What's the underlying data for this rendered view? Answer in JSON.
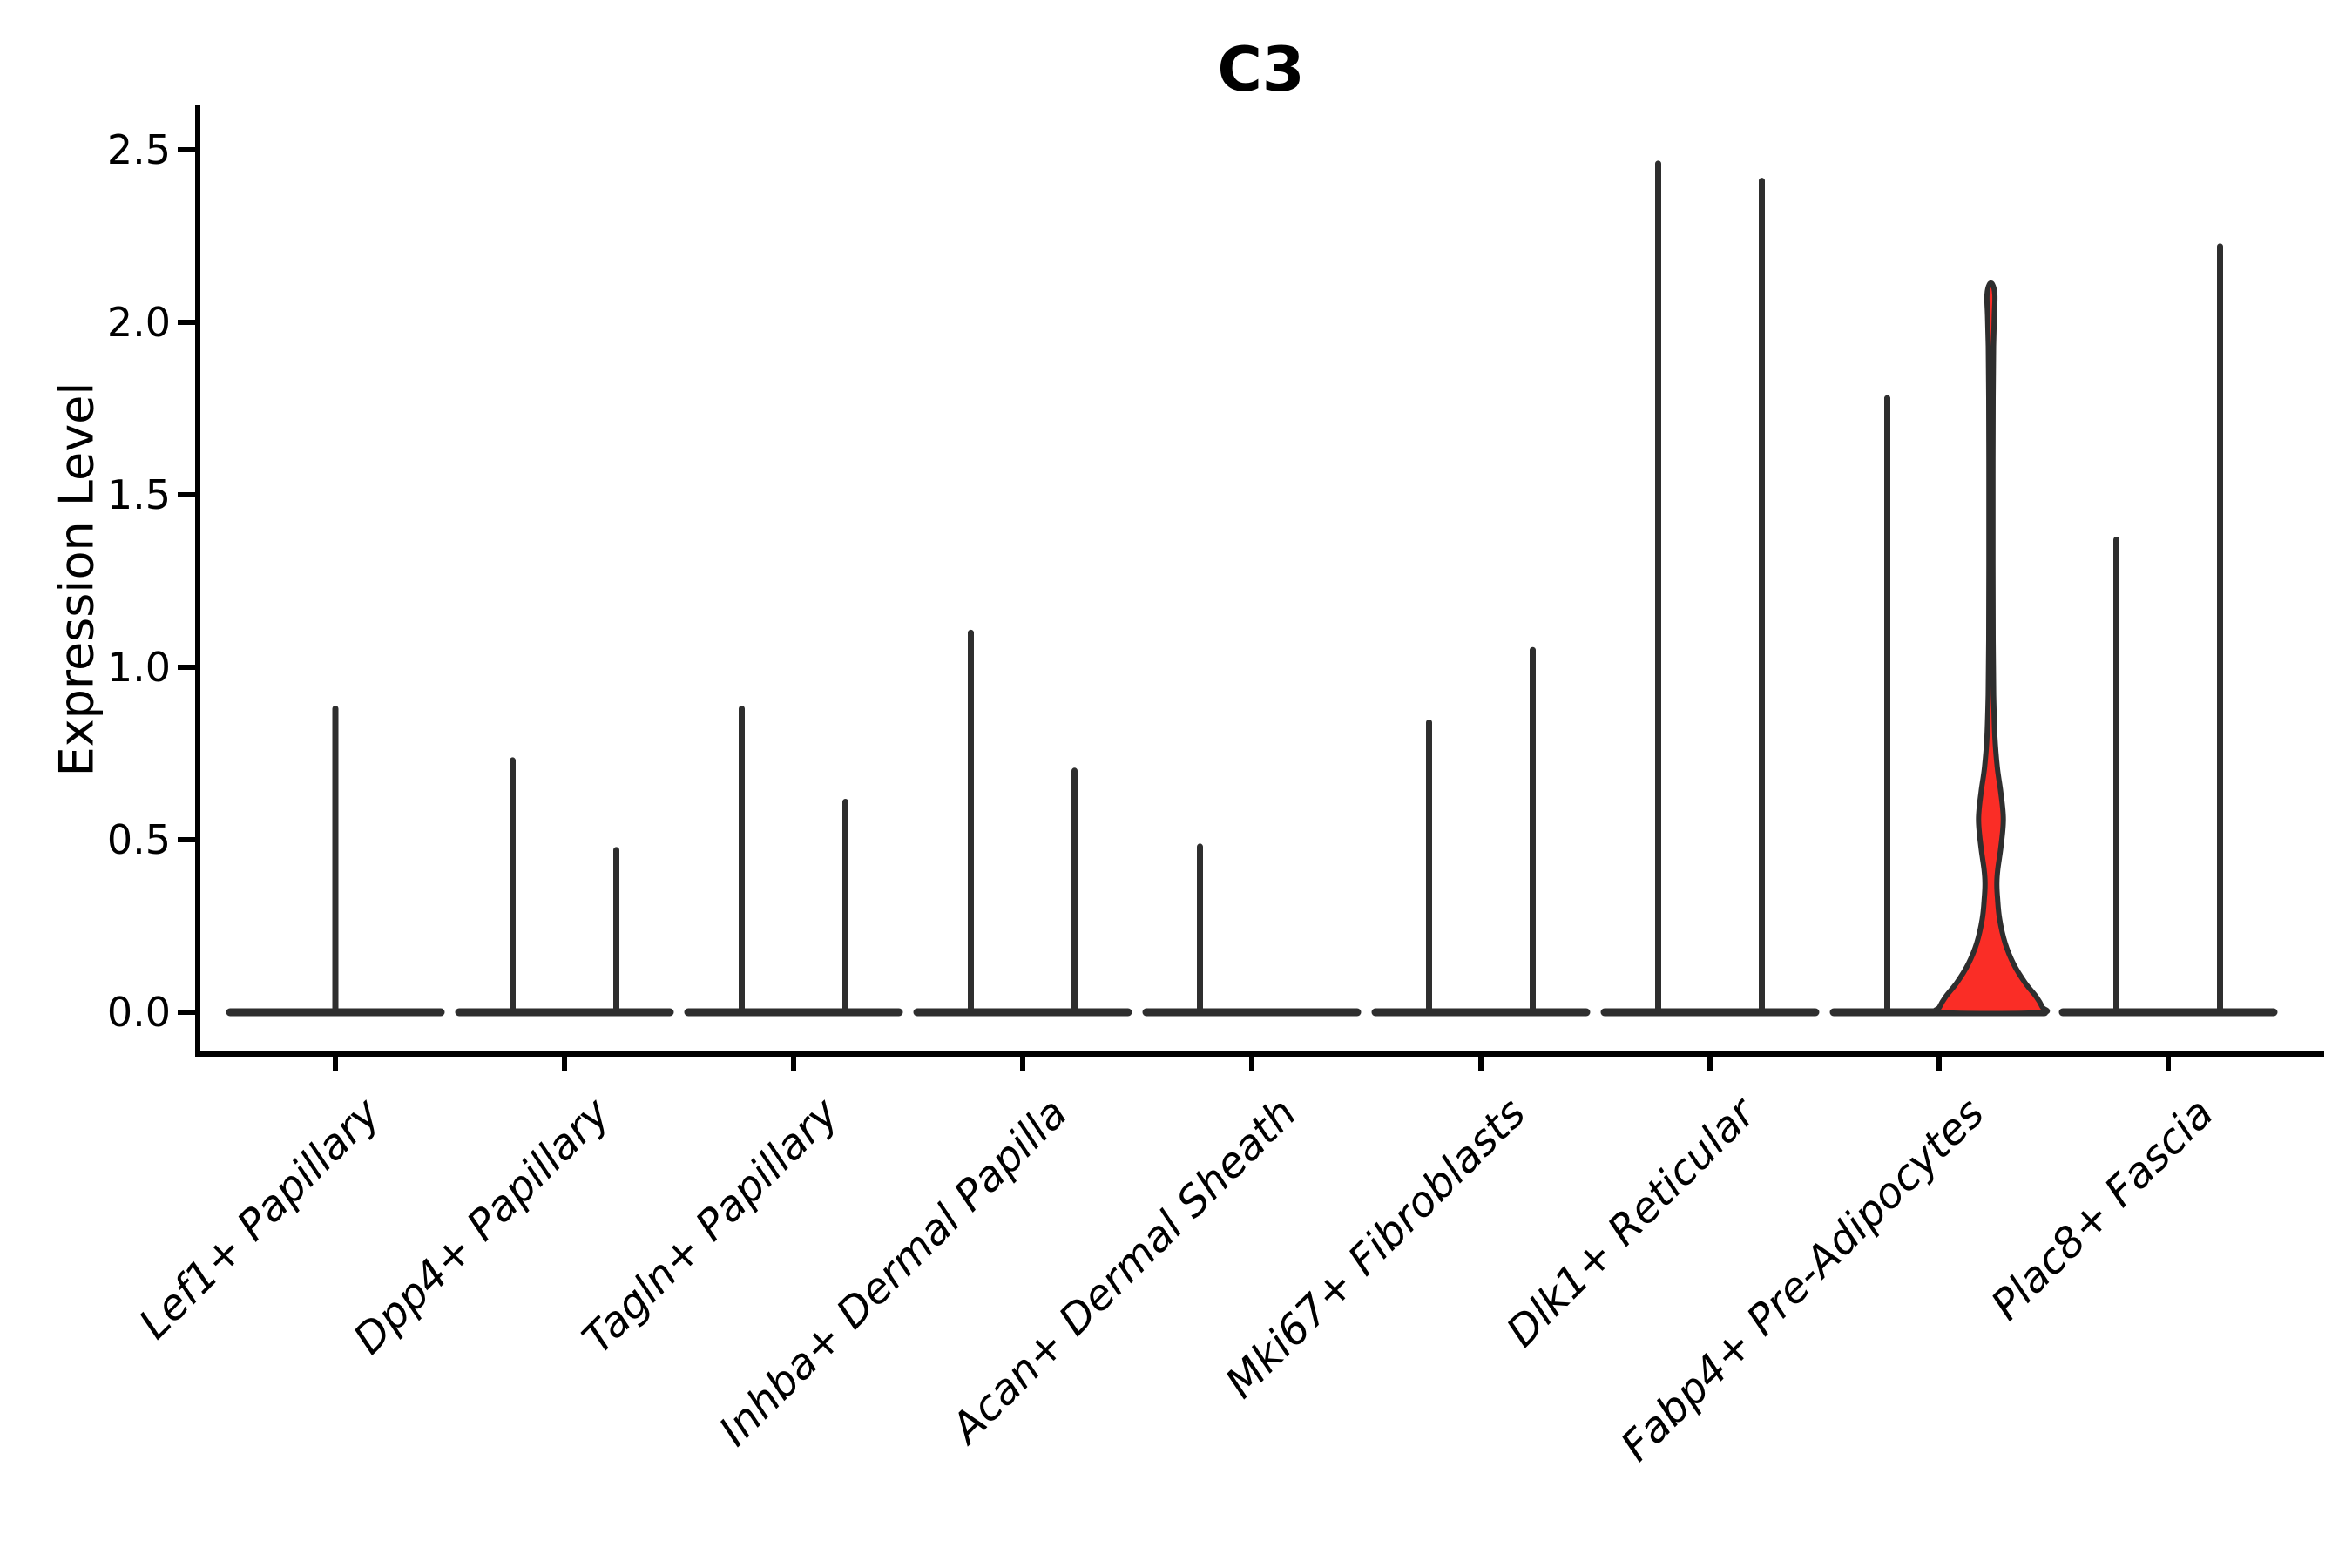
{
  "figure": {
    "title": "C3",
    "ylabel": "Expression Level"
  },
  "chart_data": {
    "type": "violin",
    "title": "C3",
    "xlabel": "",
    "ylabel": "Expression Level",
    "ylim": [
      0,
      2.5
    ],
    "yticks": [
      {
        "label": "0.0",
        "value": 0.0
      },
      {
        "label": "0.5",
        "value": 0.5
      },
      {
        "label": "1.0",
        "value": 1.0
      },
      {
        "label": "1.5",
        "value": 1.5
      },
      {
        "label": "2.0",
        "value": 2.0
      },
      {
        "label": "2.5",
        "value": 2.5
      }
    ],
    "grid": false,
    "legend": null,
    "background": "#ffffff",
    "colors": {
      "violin_line": "#2e2e2e",
      "axis": "#000000",
      "highlight_fill": "#fa2d26"
    },
    "categories": [
      "Lef1+ Papillary",
      "Dpp4+ Papillary",
      "Tagln+ Papillary",
      "Inhba+ Dermal Papilla",
      "Acan+ Dermal Sheath",
      "Mki67+ Fibroblasts",
      "Dlk1+ Reticular",
      "Fabp4+ Pre-Adipocytes",
      "Plac8+ Fascia"
    ],
    "violins": [
      {
        "category": "Lef1+ Papillary",
        "spikes": [
          {
            "pos": "center",
            "offset": 0,
            "max": 0.88
          }
        ]
      },
      {
        "category": "Dpp4+ Papillary",
        "spikes": [
          {
            "pos": "left",
            "offset": -1,
            "max": 0.73
          },
          {
            "pos": "right",
            "offset": 1,
            "max": 0.47
          }
        ]
      },
      {
        "category": "Tagln+ Papillary",
        "spikes": [
          {
            "pos": "left",
            "offset": -1,
            "max": 0.88
          },
          {
            "pos": "right",
            "offset": 1,
            "max": 0.61
          }
        ]
      },
      {
        "category": "Inhba+ Dermal Papilla",
        "spikes": [
          {
            "pos": "left",
            "offset": -1,
            "max": 1.1
          },
          {
            "pos": "right",
            "offset": 1,
            "max": 0.7
          }
        ]
      },
      {
        "category": "Acan+ Dermal Sheath",
        "spikes": [
          {
            "pos": "left",
            "offset": -1,
            "max": 0.48
          }
        ]
      },
      {
        "category": "Mki67+ Fibroblasts",
        "spikes": [
          {
            "pos": "left",
            "offset": -1,
            "max": 0.84
          },
          {
            "pos": "right",
            "offset": 1,
            "max": 1.05
          }
        ]
      },
      {
        "category": "Dlk1+ Reticular",
        "spikes": [
          {
            "pos": "left",
            "offset": -1,
            "max": 2.46
          },
          {
            "pos": "right",
            "offset": 1,
            "max": 2.41
          }
        ]
      },
      {
        "category": "Fabp4+ Pre-Adipocytes",
        "spikes": [
          {
            "pos": "left",
            "offset": -1,
            "max": 1.78
          }
        ],
        "highlight_violin": {
          "pos": "right",
          "offset": 1,
          "max": 2.11,
          "fill": "#fa2d26",
          "profile": [
            [
              2.11,
              0.03
            ],
            [
              2.08,
              0.075
            ],
            [
              2.02,
              0.065
            ],
            [
              1.93,
              0.05
            ],
            [
              1.78,
              0.042
            ],
            [
              1.55,
              0.038
            ],
            [
              1.3,
              0.038
            ],
            [
              1.08,
              0.042
            ],
            [
              0.92,
              0.052
            ],
            [
              0.8,
              0.075
            ],
            [
              0.71,
              0.12
            ],
            [
              0.64,
              0.185
            ],
            [
              0.56,
              0.235
            ],
            [
              0.48,
              0.19
            ],
            [
              0.415,
              0.13
            ],
            [
              0.375,
              0.112
            ],
            [
              0.33,
              0.125
            ],
            [
              0.27,
              0.165
            ],
            [
              0.2,
              0.27
            ],
            [
              0.14,
              0.43
            ],
            [
              0.085,
              0.65
            ],
            [
              0.045,
              0.86
            ],
            [
              0.015,
              0.975
            ],
            [
              0.0,
              1.0
            ]
          ]
        }
      },
      {
        "category": "Plac8+ Fascia",
        "spikes": [
          {
            "pos": "left",
            "offset": -1,
            "max": 1.37
          },
          {
            "pos": "right",
            "offset": 1,
            "max": 2.22
          }
        ]
      }
    ]
  }
}
